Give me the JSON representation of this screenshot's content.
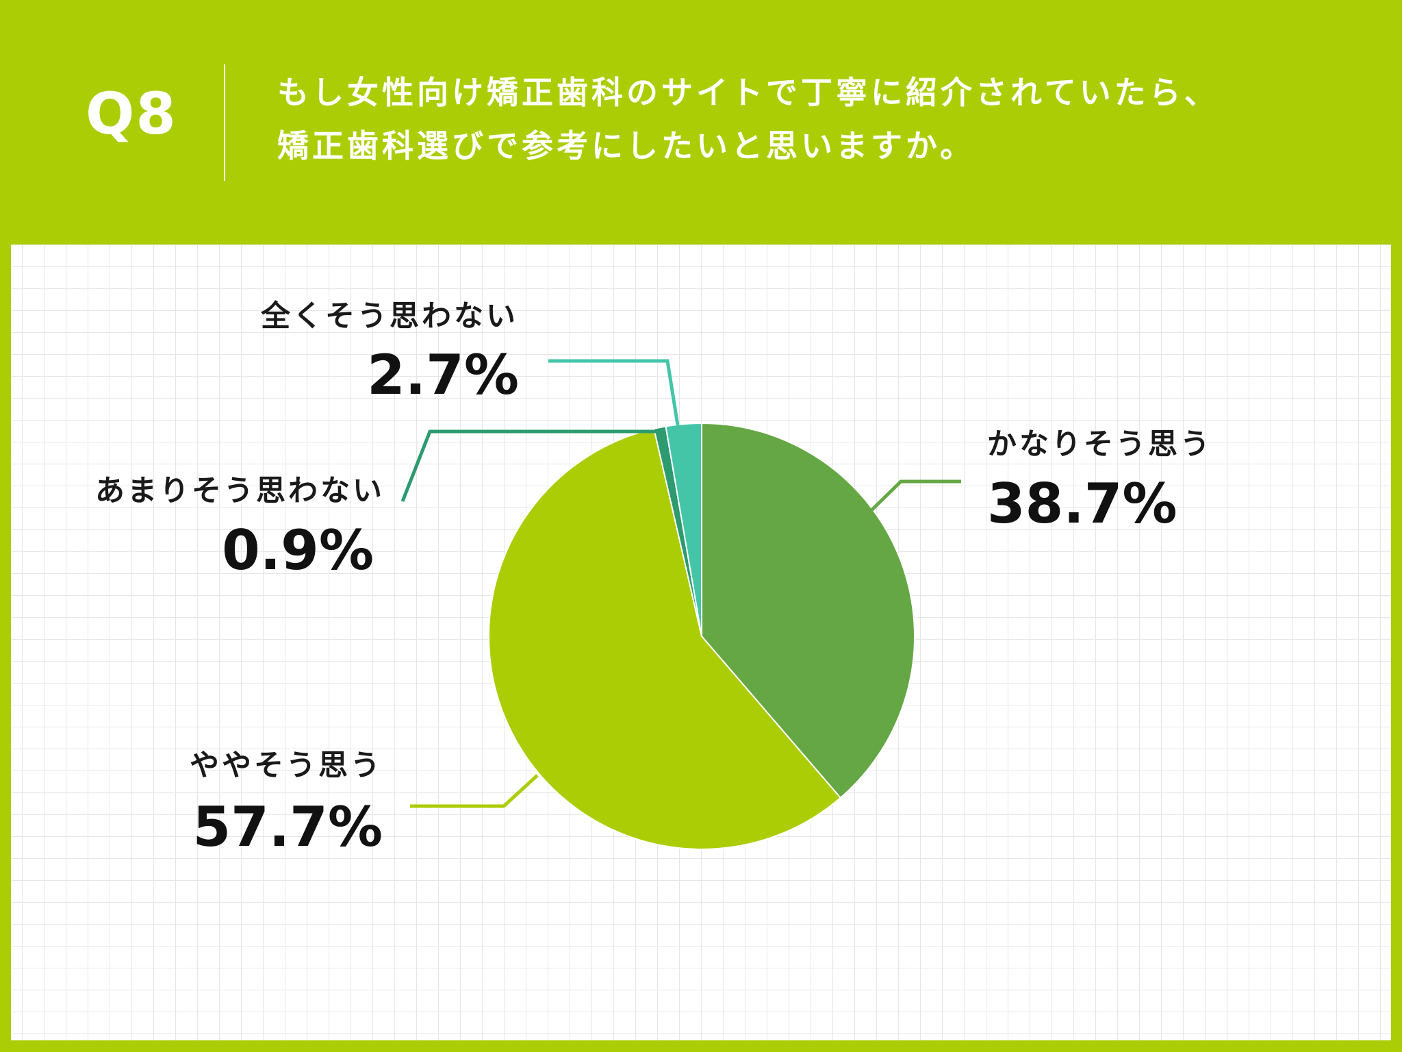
{
  "header": {
    "q_number": "Q8",
    "question_line_1": "もし女性向け矯正歯科のサイトで丁寧に紹介されていたら、",
    "question_line_2": "矯正歯科選びで参考にしたいと思いますか。"
  },
  "colors": {
    "background": "#abcd06",
    "panel": "#ffffff",
    "text_header": "#ffffff"
  },
  "chart_data": {
    "type": "pie",
    "title": "",
    "start_angle_deg": 0,
    "direction": "clockwise",
    "slices": [
      {
        "label": "かなりそう思う",
        "value": 38.7,
        "display": "38.7%",
        "color": "#64a744"
      },
      {
        "label": "ややそう思う",
        "value": 57.7,
        "display": "57.7%",
        "color": "#abcd06"
      },
      {
        "label": "あまりそう思わない",
        "value": 0.9,
        "display": "0.9%",
        "color": "#2e9a6f"
      },
      {
        "label": "全くそう思わない",
        "value": 2.7,
        "display": "2.7%",
        "color": "#44c5a8"
      }
    ]
  }
}
